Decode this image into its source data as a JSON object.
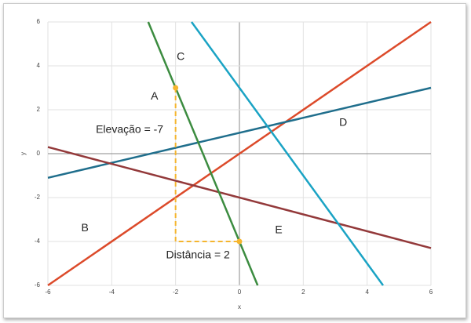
{
  "chart_data": {
    "type": "line",
    "x_label": "x",
    "y_label": "y",
    "xlim": [
      -6,
      6
    ],
    "ylim": [
      -6,
      6
    ],
    "xticks": [
      -6,
      -4,
      -2,
      0,
      2,
      4,
      6
    ],
    "yticks": [
      -6,
      -4,
      -2,
      0,
      2,
      4,
      6
    ],
    "grid": true,
    "series": [
      {
        "color": "#dc4a2a",
        "x": [
          -6,
          6
        ],
        "values": [
          -6,
          6
        ]
      },
      {
        "color": "#1f6e8c",
        "x": [
          -6,
          6
        ],
        "values": [
          -1.1,
          3
        ]
      },
      {
        "color": "#93393a",
        "x": [
          -6,
          6
        ],
        "values": [
          0.3,
          -4.3
        ]
      },
      {
        "color": "#3c8c40",
        "x": [
          -2.857,
          0.571
        ],
        "values": [
          6,
          -6
        ]
      },
      {
        "color": "#1aa3c4",
        "x": [
          -1.5,
          4.5
        ],
        "values": [
          6,
          -6
        ]
      }
    ],
    "slope_guide": {
      "color": "#f5b52e",
      "x": [
        -2,
        -2,
        0
      ],
      "values": [
        3,
        -4,
        -4
      ]
    },
    "annotations": [
      {
        "text": "A",
        "x": -2.66,
        "y": 2.6
      },
      {
        "text": "B",
        "x": -4.84,
        "y": -3.4
      },
      {
        "text": "C",
        "x": -1.84,
        "y": 4.4
      },
      {
        "text": "D",
        "x": 3.25,
        "y": 1.4
      },
      {
        "text": "E",
        "x": 1.23,
        "y": -3.5
      },
      {
        "text": "Elevação = -7",
        "x": -3.44,
        "y": 1.07
      },
      {
        "text": "Distância = 2",
        "x": -1.3,
        "y": -4.64
      }
    ]
  }
}
